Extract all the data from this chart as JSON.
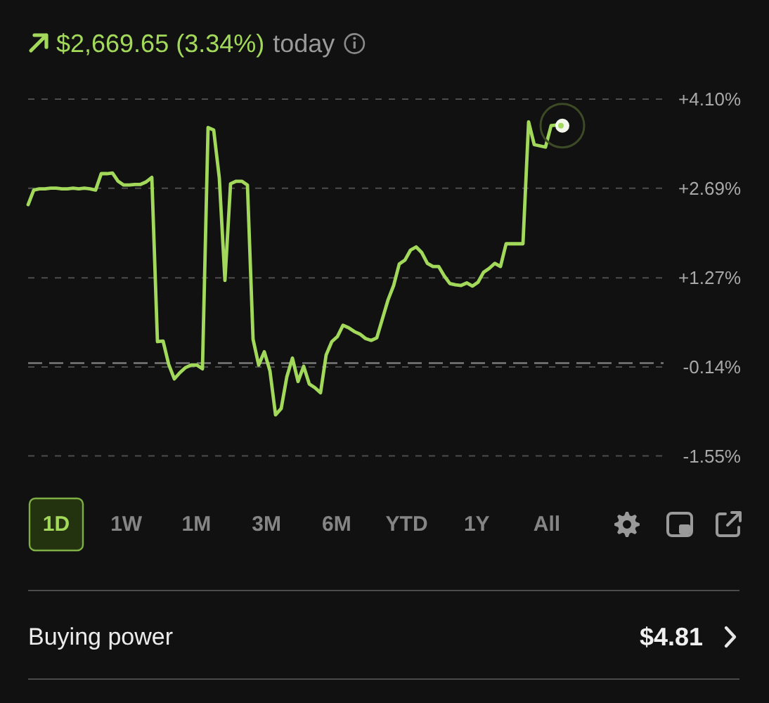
{
  "chart_data": {
    "type": "line",
    "title": "$2,669.65 (3.34%)",
    "subtitle": "today",
    "categories": [
      null,
      null,
      null,
      null,
      null,
      null,
      null,
      null,
      null,
      null,
      null,
      null,
      null,
      null,
      null,
      null,
      null,
      null,
      null,
      null,
      null,
      null,
      null,
      null,
      null,
      null,
      null,
      null,
      null,
      null,
      null,
      null,
      null,
      null,
      null,
      null,
      null,
      null,
      null,
      null,
      null,
      null,
      null,
      null,
      null,
      null,
      null,
      null,
      null,
      null,
      null,
      null,
      null,
      null,
      null,
      null,
      null,
      null,
      null,
      null,
      null,
      null,
      null,
      null,
      null,
      null,
      null,
      null,
      null,
      null,
      null,
      null,
      null,
      null,
      null,
      null,
      null,
      null,
      null,
      null,
      null,
      null,
      null,
      null,
      null,
      null,
      null,
      null,
      null,
      null,
      null,
      null,
      null,
      null,
      null,
      null,
      null,
      null,
      null,
      null,
      null,
      null,
      null,
      null,
      null,
      null,
      null,
      null,
      null,
      null,
      null,
      null,
      null,
      null
    ],
    "series": [
      {
        "color": "#a3d95b",
        "values": [
          2.43,
          2.66,
          2.68,
          2.68,
          2.69,
          2.69,
          2.68,
          2.68,
          2.69,
          2.68,
          2.69,
          2.68,
          2.66,
          2.92,
          2.92,
          2.93,
          2.8,
          2.74,
          2.74,
          2.75,
          2.75,
          2.79,
          2.86,
          0.26,
          0.27,
          -0.1,
          -0.33,
          -0.23,
          -0.15,
          -0.11,
          -0.11,
          -0.17,
          3.65,
          3.61,
          2.85,
          1.23,
          2.76,
          2.8,
          2.8,
          2.74,
          0.3,
          -0.11,
          0.1,
          -0.2,
          -0.9,
          -0.8,
          -0.3,
          0,
          -0.37,
          -0.13,
          -0.41,
          -0.47,
          -0.55,
          0.05,
          0.26,
          0.34,
          0.52,
          0.48,
          0.42,
          0.38,
          0.31,
          0.28,
          0.32,
          0.62,
          0.92,
          1.15,
          1.49,
          1.55,
          1.71,
          1.76,
          1.67,
          1.5,
          1.45,
          1.45,
          1.3,
          1.18,
          1.16,
          1.15,
          1.19,
          1.14,
          1.2,
          1.36,
          1.42,
          1.5,
          1.45,
          1.81,
          1.81,
          1.81,
          1.81,
          3.74,
          3.38,
          3.36,
          3.34,
          3.68,
          3.69,
          3.68,
          null,
          null,
          null,
          null,
          null,
          null,
          null,
          null,
          null,
          null,
          null,
          null,
          null,
          null,
          null,
          null,
          null,
          null
        ]
      }
    ],
    "ylim": [
      -1.55,
      4.1
    ],
    "yticks": [
      {
        "value": -1.55,
        "label": "-1.55%"
      },
      {
        "value": -0.14,
        "label": "-0.14%"
      },
      {
        "value": 1.27,
        "label": "+1.27%"
      },
      {
        "value": 2.69,
        "label": "+2.69%"
      },
      {
        "value": 4.1,
        "label": "+4.10%"
      }
    ],
    "grid": "y",
    "tick_labels": "y",
    "ref_lines": [
      {
        "axis": "y",
        "value": -0.08,
        "line_style": "dashed",
        "color": "#7a7a7a"
      }
    ],
    "annotations": [
      "1D",
      "1W",
      "1M",
      "3M",
      "6M",
      "YTD",
      "1Y",
      "All",
      "Buying power",
      "$4.81"
    ]
  }
}
